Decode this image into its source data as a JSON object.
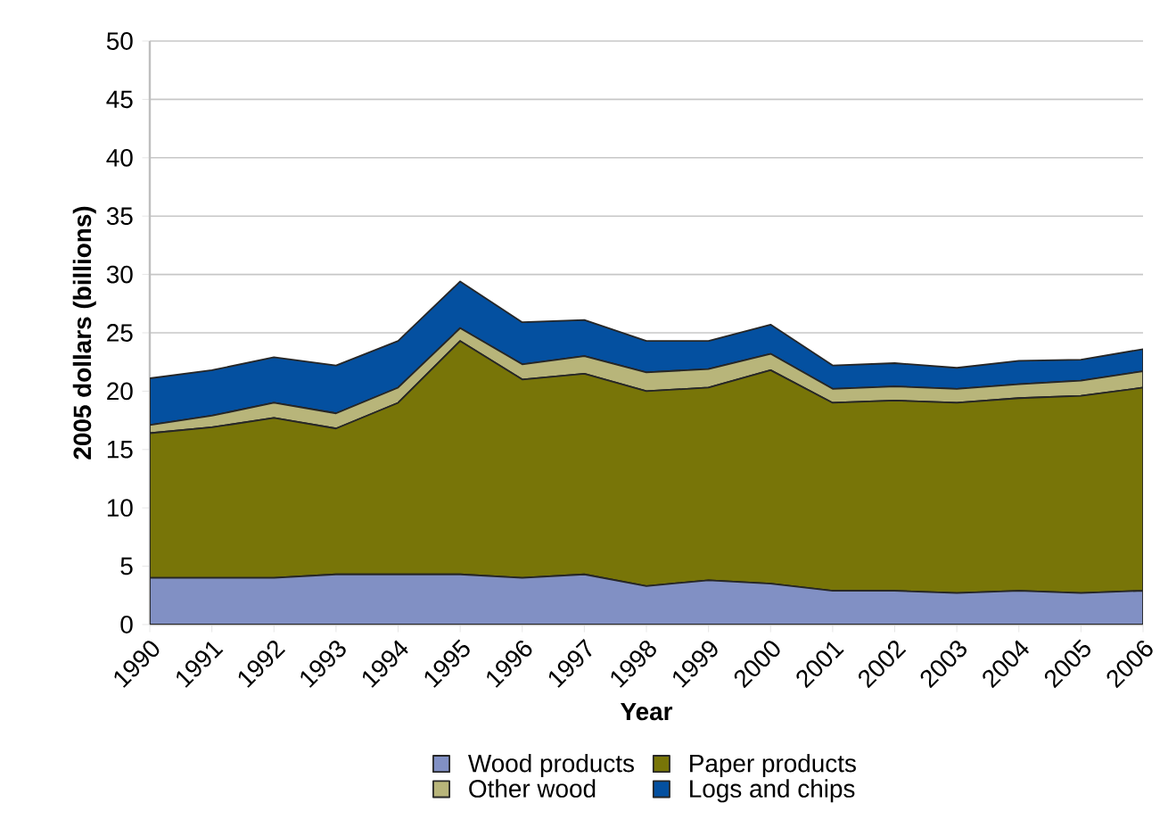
{
  "chart_data": {
    "type": "area",
    "stacked": true,
    "xlabel": "Year",
    "ylabel": "2005 dollars (billions)",
    "categories": [
      "1990",
      "1991",
      "1992",
      "1993",
      "1994",
      "1995",
      "1996",
      "1997",
      "1998",
      "1999",
      "2000",
      "2001",
      "2002",
      "2003",
      "2004",
      "2005",
      "2006"
    ],
    "series": [
      {
        "name": "Wood products",
        "color": "#8190c4",
        "values": [
          4.0,
          4.0,
          4.0,
          4.3,
          4.3,
          4.3,
          4.0,
          4.3,
          3.3,
          3.8,
          3.5,
          2.9,
          2.9,
          2.7,
          2.9,
          2.7,
          2.9
        ]
      },
      {
        "name": "Paper products",
        "color": "#787508",
        "values": [
          12.4,
          12.9,
          13.7,
          12.5,
          14.7,
          20.0,
          17.0,
          17.2,
          16.7,
          16.5,
          18.3,
          16.1,
          16.3,
          16.3,
          16.5,
          16.9,
          17.4
        ]
      },
      {
        "name": "Other wood",
        "color": "#b8b57a",
        "values": [
          0.7,
          1.0,
          1.3,
          1.3,
          1.3,
          1.1,
          1.3,
          1.5,
          1.6,
          1.6,
          1.4,
          1.2,
          1.2,
          1.2,
          1.2,
          1.3,
          1.4
        ]
      },
      {
        "name": "Logs and chips",
        "color": "#0450a0",
        "values": [
          4.0,
          3.9,
          3.9,
          4.1,
          4.0,
          4.0,
          3.6,
          3.1,
          2.7,
          2.4,
          2.5,
          2.0,
          2.0,
          1.8,
          2.0,
          1.8,
          1.9
        ]
      }
    ],
    "ylim": [
      0,
      50
    ],
    "yticks": [
      0,
      5,
      10,
      15,
      20,
      25,
      30,
      35,
      40,
      45,
      50
    ],
    "grid": "y",
    "legend": "bottom"
  }
}
